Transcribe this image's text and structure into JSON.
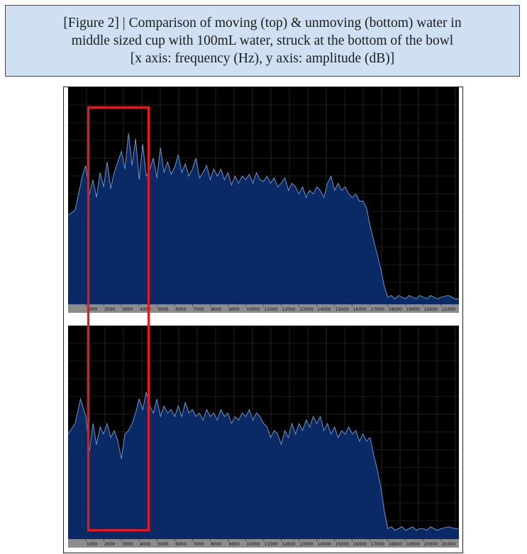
{
  "caption": {
    "line1": "[Figure 2] | Comparison of moving (top) & unmoving (bottom) water in",
    "line2": "middle sized cup with 100mL water, struck at the bottom of the bowl",
    "line3": "[x axis: frequency (Hz), y axis: amplitude (dB)]"
  },
  "colors": {
    "plot_background": "#000000",
    "grid": "#3a3a3a",
    "fill": "#0a2a66",
    "outline": "#6fa2d8",
    "axis_bar": "#8c8c8c",
    "highlight_box": "#e8191c"
  },
  "chart_data": [
    {
      "type": "area",
      "xlabel": "frequency (Hz)",
      "ylabel": "amplitude (dB)",
      "xlim": [
        0,
        22000
      ],
      "ylim": [
        0,
        100
      ],
      "grid": true,
      "x_tick_labels": [
        "1000",
        "2000",
        "3000",
        "4000",
        "5000",
        "6000",
        "7000",
        "8000",
        "9000",
        "10000",
        "11000",
        "12000",
        "13000",
        "14000",
        "15000",
        "16000",
        "17000",
        "18000",
        "19000",
        "20000",
        "21000"
      ],
      "x": [
        0,
        400,
        800,
        1000,
        1200,
        1400,
        1600,
        1800,
        2000,
        2200,
        2400,
        2600,
        2800,
        3000,
        3200,
        3400,
        3600,
        3800,
        4000,
        4200,
        4400,
        4600,
        4800,
        5000,
        5200,
        5400,
        5600,
        5800,
        6000,
        6200,
        6400,
        6600,
        6800,
        7000,
        7200,
        7400,
        7600,
        7800,
        8000,
        8200,
        8400,
        8600,
        8800,
        9000,
        9200,
        9400,
        9600,
        9800,
        10000,
        10200,
        10400,
        10600,
        10800,
        11000,
        11200,
        11400,
        11600,
        11800,
        12000,
        12200,
        12400,
        12600,
        12800,
        13000,
        13200,
        13400,
        13600,
        13800,
        14000,
        14200,
        14400,
        14600,
        14800,
        15000,
        15200,
        15400,
        15600,
        15800,
        16000,
        16200,
        16400,
        16600,
        16800,
        17000,
        17200,
        17400,
        17600,
        17800,
        18000,
        18200,
        18400,
        18600,
        18800,
        19000,
        19200,
        19400,
        19600,
        19800,
        20000,
        20200,
        20400,
        20600,
        20800,
        21000,
        21400,
        21800,
        22000
      ],
      "values": [
        50,
        53,
        72,
        78,
        62,
        70,
        60,
        74,
        66,
        80,
        65,
        74,
        80,
        86,
        76,
        96,
        78,
        93,
        70,
        90,
        72,
        76,
        82,
        71,
        88,
        74,
        80,
        73,
        77,
        84,
        74,
        79,
        72,
        76,
        82,
        71,
        74,
        78,
        70,
        76,
        72,
        76,
        70,
        74,
        67,
        72,
        68,
        72,
        70,
        73,
        68,
        74,
        70,
        69,
        72,
        68,
        71,
        66,
        68,
        71,
        64,
        68,
        66,
        62,
        66,
        60,
        64,
        62,
        66,
        64,
        60,
        68,
        72,
        64,
        68,
        64,
        66,
        62,
        60,
        62,
        58,
        58,
        54,
        44,
        36,
        28,
        20,
        10,
        4,
        5,
        3,
        5,
        4,
        3,
        5,
        4,
        3,
        5,
        4,
        3,
        5,
        4,
        3,
        4,
        5,
        3,
        3
      ]
    },
    {
      "type": "area",
      "xlabel": "frequency (Hz)",
      "ylabel": "amplitude (dB)",
      "xlim": [
        0,
        22000
      ],
      "ylim": [
        0,
        100
      ],
      "grid": true,
      "x_tick_labels": [
        "1000",
        "2000",
        "3000",
        "4000",
        "5000",
        "6000",
        "7000",
        "8000",
        "9000",
        "10000",
        "11000",
        "12000",
        "13000",
        "14000",
        "15000",
        "16000",
        "17000",
        "18000",
        "19000",
        "20000",
        "21000"
      ],
      "x": [
        0,
        400,
        700,
        1000,
        1200,
        1400,
        1600,
        1800,
        2000,
        2200,
        2400,
        2600,
        2800,
        3000,
        3200,
        3400,
        3600,
        3800,
        4000,
        4200,
        4400,
        4600,
        4800,
        5000,
        5200,
        5400,
        5600,
        5800,
        6000,
        6200,
        6400,
        6600,
        6800,
        7000,
        7200,
        7400,
        7600,
        7800,
        8000,
        8200,
        8400,
        8600,
        8800,
        9000,
        9200,
        9400,
        9600,
        9800,
        10000,
        10200,
        10400,
        10600,
        10800,
        11000,
        11200,
        11400,
        11600,
        11800,
        12000,
        12200,
        12400,
        12600,
        12800,
        13000,
        13200,
        13400,
        13600,
        13800,
        14000,
        14200,
        14400,
        14600,
        14800,
        15000,
        15200,
        15400,
        15600,
        15800,
        16000,
        16200,
        16400,
        16600,
        16800,
        17000,
        17200,
        17400,
        17600,
        17800,
        18000,
        18200,
        18400,
        18600,
        18800,
        19000,
        19200,
        19400,
        19600,
        19800,
        20000,
        20200,
        20400,
        20600,
        20800,
        21000,
        21400,
        21800,
        22000
      ],
      "values": [
        60,
        66,
        80,
        70,
        50,
        66,
        54,
        64,
        60,
        66,
        58,
        62,
        56,
        46,
        60,
        62,
        66,
        72,
        80,
        74,
        84,
        76,
        72,
        80,
        70,
        76,
        72,
        74,
        70,
        76,
        70,
        78,
        72,
        74,
        70,
        72,
        68,
        74,
        70,
        72,
        68,
        74,
        70,
        72,
        66,
        70,
        68,
        72,
        70,
        74,
        68,
        72,
        70,
        66,
        64,
        58,
        62,
        60,
        54,
        62,
        58,
        66,
        60,
        66,
        62,
        68,
        64,
        70,
        66,
        70,
        62,
        66,
        60,
        64,
        58,
        62,
        60,
        64,
        60,
        62,
        56,
        60,
        56,
        58,
        48,
        40,
        30,
        16,
        6,
        7,
        5,
        6,
        7,
        5,
        6,
        7,
        5,
        6,
        6,
        5,
        7,
        6,
        5,
        6,
        7,
        6,
        6
      ]
    }
  ]
}
